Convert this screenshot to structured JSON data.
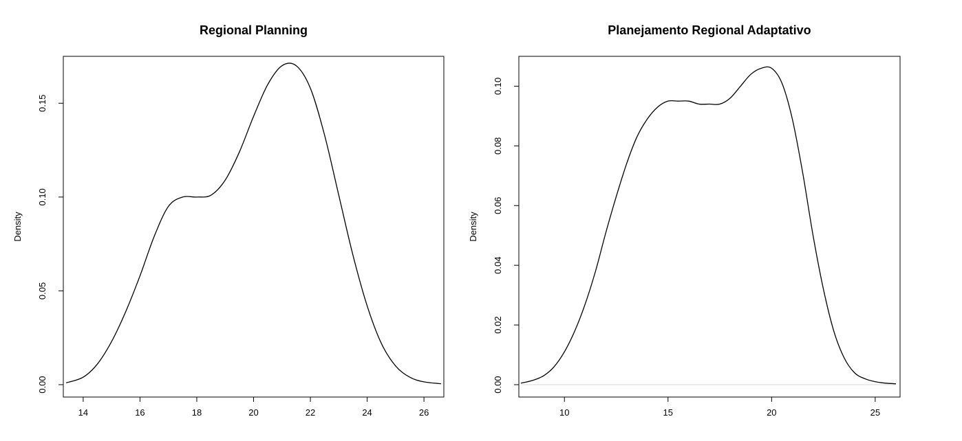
{
  "chart_data": [
    {
      "type": "line",
      "title": "Regional Planning",
      "xlabel": "",
      "ylabel": "Density",
      "xlim": [
        13.3,
        26.7
      ],
      "ylim": [
        0.0,
        0.175
      ],
      "x_ticks": [
        14,
        16,
        18,
        20,
        22,
        24,
        26
      ],
      "x_tick_labels": [
        "14",
        "16",
        "18",
        "20",
        "22",
        "24",
        "26"
      ],
      "y_ticks": [
        0.0,
        0.05,
        0.1,
        0.15
      ],
      "y_tick_labels": [
        "0.00",
        "0.05",
        "0.10",
        "0.15"
      ],
      "grid": false,
      "show_baseline": false,
      "series": [
        {
          "x": [
            13.4,
            14.0,
            14.5,
            15.0,
            15.5,
            16.0,
            16.5,
            17.0,
            17.5,
            18.0,
            18.5,
            19.0,
            19.5,
            20.0,
            20.5,
            21.0,
            21.5,
            22.0,
            22.5,
            23.0,
            23.5,
            24.0,
            24.5,
            25.0,
            25.5,
            26.0,
            26.6
          ],
          "y": [
            0.001,
            0.004,
            0.011,
            0.023,
            0.039,
            0.058,
            0.079,
            0.095,
            0.1,
            0.1,
            0.101,
            0.109,
            0.124,
            0.143,
            0.16,
            0.17,
            0.17,
            0.158,
            0.133,
            0.101,
            0.069,
            0.042,
            0.022,
            0.01,
            0.004,
            0.0015,
            0.0005
          ]
        }
      ]
    },
    {
      "type": "line",
      "title": "Planejamento Regional Adaptativo",
      "xlabel": "",
      "ylabel": "Density",
      "xlim": [
        7.8,
        26.2
      ],
      "ylim": [
        0.0,
        0.11
      ],
      "x_ticks": [
        10,
        15,
        20,
        25
      ],
      "x_tick_labels": [
        "10",
        "15",
        "20",
        "25"
      ],
      "y_ticks": [
        0.0,
        0.02,
        0.04,
        0.06,
        0.08,
        0.1
      ],
      "y_tick_labels": [
        "0.00",
        "0.02",
        "0.04",
        "0.06",
        "0.08",
        "0.10"
      ],
      "grid": false,
      "show_baseline": true,
      "series": [
        {
          "x": [
            7.9,
            8.5,
            9.0,
            9.5,
            10.0,
            10.5,
            11.0,
            11.5,
            12.0,
            12.5,
            13.0,
            13.5,
            14.0,
            14.5,
            15.0,
            15.5,
            16.0,
            16.5,
            17.0,
            17.5,
            18.0,
            18.5,
            19.0,
            19.5,
            20.0,
            20.5,
            21.0,
            21.5,
            22.0,
            22.5,
            23.0,
            23.5,
            24.0,
            24.5,
            25.0,
            25.5,
            26.0
          ],
          "y": [
            0.0005,
            0.0015,
            0.003,
            0.006,
            0.011,
            0.018,
            0.027,
            0.038,
            0.051,
            0.063,
            0.074,
            0.083,
            0.089,
            0.093,
            0.095,
            0.095,
            0.095,
            0.094,
            0.094,
            0.094,
            0.096,
            0.1,
            0.104,
            0.106,
            0.106,
            0.101,
            0.089,
            0.071,
            0.05,
            0.032,
            0.018,
            0.009,
            0.004,
            0.002,
            0.001,
            0.0005,
            0.0003
          ]
        }
      ]
    }
  ]
}
